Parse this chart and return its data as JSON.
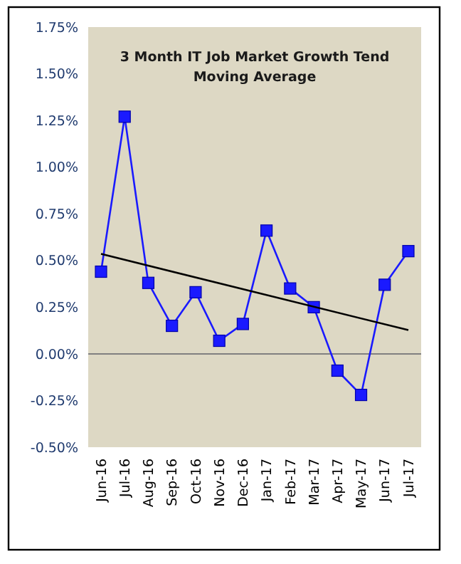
{
  "chart_data": {
    "type": "line",
    "title": "3 Month IT Job Market Growth Tend\nMoving Average",
    "categories": [
      "Jun-16",
      "Jul-16",
      "Aug-16",
      "Sep-16",
      "Oct-16",
      "Nov-16",
      "Dec-16",
      "Jan-17",
      "Feb-17",
      "Mar-17",
      "Apr-17",
      "May-17",
      "Jun-17",
      "Jul-17"
    ],
    "series": [
      {
        "color": "#1a1aff",
        "marker": "square",
        "values": [
          0.44,
          1.27,
          0.38,
          0.15,
          0.33,
          0.07,
          0.16,
          0.66,
          0.35,
          0.25,
          -0.09,
          -0.22,
          0.37,
          0.55
        ]
      },
      {
        "color": "#000000",
        "marker": "none",
        "x": [
          "Jun-16",
          "Jul-17"
        ],
        "values": [
          0.535,
          0.127
        ]
      }
    ],
    "ylim": [
      -0.5,
      1.75
    ],
    "yticks": [
      {
        "value": -0.5,
        "label": "-0.50%"
      },
      {
        "value": -0.25,
        "label": "-0.25%"
      },
      {
        "value": 0,
        "label": "0.00%"
      },
      {
        "value": 0.25,
        "label": "0.25%"
      },
      {
        "value": 0.5,
        "label": "0.50%"
      },
      {
        "value": 0.75,
        "label": "0.75%"
      },
      {
        "value": 1,
        "label": "1.00%"
      },
      {
        "value": 1.25,
        "label": "1.25%"
      },
      {
        "value": 1.5,
        "label": "1.50%"
      },
      {
        "value": 1.75,
        "label": "1.75%"
      }
    ],
    "ref_lines": [
      {
        "axis": "y",
        "value": 0,
        "color": "#808080"
      }
    ],
    "line_style": "solid"
  }
}
